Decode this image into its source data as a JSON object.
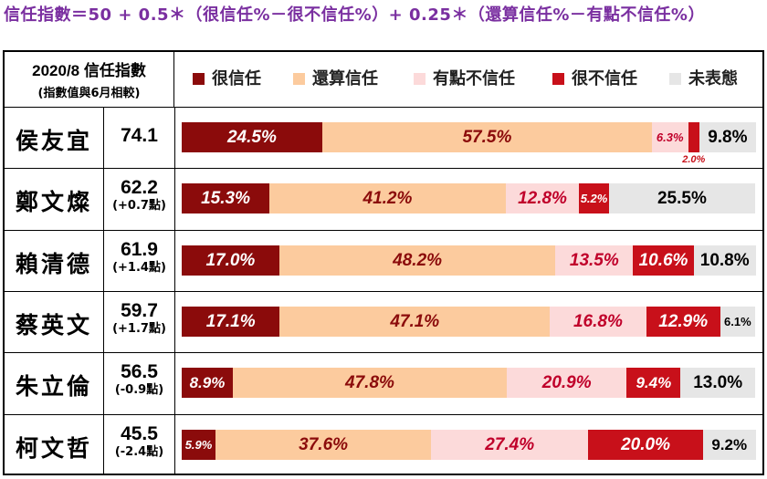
{
  "formula": "信任指數＝50 + 0.5＊（很信任%－很不信任%）+ 0.25＊（還算信任%－有點不信任%）",
  "header": {
    "line1": "2020/8 信任指數",
    "line2": "(指數值與6月相較)"
  },
  "chart_data": {
    "type": "bar",
    "stacked": true,
    "orientation": "horizontal",
    "xlim": [
      0,
      100
    ],
    "legend_position": "top",
    "series": [
      {
        "name": "很信任",
        "color": "#8b0b0b",
        "text_color": "#ffffff"
      },
      {
        "name": "還算信任",
        "color": "#fccb9e",
        "text_color": "#8b0b0b"
      },
      {
        "name": "有點不信任",
        "color": "#fcdada",
        "text_color": "#c0002a"
      },
      {
        "name": "很不信任",
        "color": "#c8101a",
        "text_color": "#ffffff"
      },
      {
        "name": "未表態",
        "color": "#e6e6e6",
        "text_color": "#000000"
      }
    ],
    "rows": [
      {
        "name": "侯友宜",
        "index": "74.1",
        "change": "",
        "values": [
          24.5,
          57.5,
          6.3,
          2.0,
          9.8
        ],
        "labels": [
          "24.5%",
          "57.5%",
          "6.3%",
          "2.0%",
          "9.8%"
        ]
      },
      {
        "name": "鄭文燦",
        "index": "62.2",
        "change": "(+0.7點)",
        "values": [
          15.3,
          41.2,
          12.8,
          5.2,
          25.5
        ],
        "labels": [
          "15.3%",
          "41.2%",
          "12.8%",
          "5.2%",
          "25.5%"
        ]
      },
      {
        "name": "賴清德",
        "index": "61.9",
        "change": "(+1.4點)",
        "values": [
          17.0,
          48.2,
          13.5,
          10.6,
          10.8
        ],
        "labels": [
          "17.0%",
          "48.2%",
          "13.5%",
          "10.6%",
          "10.8%"
        ]
      },
      {
        "name": "蔡英文",
        "index": "59.7",
        "change": "(+1.7點)",
        "values": [
          17.1,
          47.1,
          16.8,
          12.9,
          6.1
        ],
        "labels": [
          "17.1%",
          "47.1%",
          "16.8%",
          "12.9%",
          "6.1%"
        ]
      },
      {
        "name": "朱立倫",
        "index": "56.5",
        "change": "(-0.9點)",
        "values": [
          8.9,
          47.8,
          20.9,
          9.4,
          13.0
        ],
        "labels": [
          "8.9%",
          "47.8%",
          "20.9%",
          "9.4%",
          "13.0%"
        ]
      },
      {
        "name": "柯文哲",
        "index": "45.5",
        "change": "(-2.4點)",
        "values": [
          5.9,
          37.6,
          27.4,
          20.0,
          9.2
        ],
        "labels": [
          "5.9%",
          "37.6%",
          "27.4%",
          "20.0%",
          "9.2%"
        ]
      }
    ]
  }
}
